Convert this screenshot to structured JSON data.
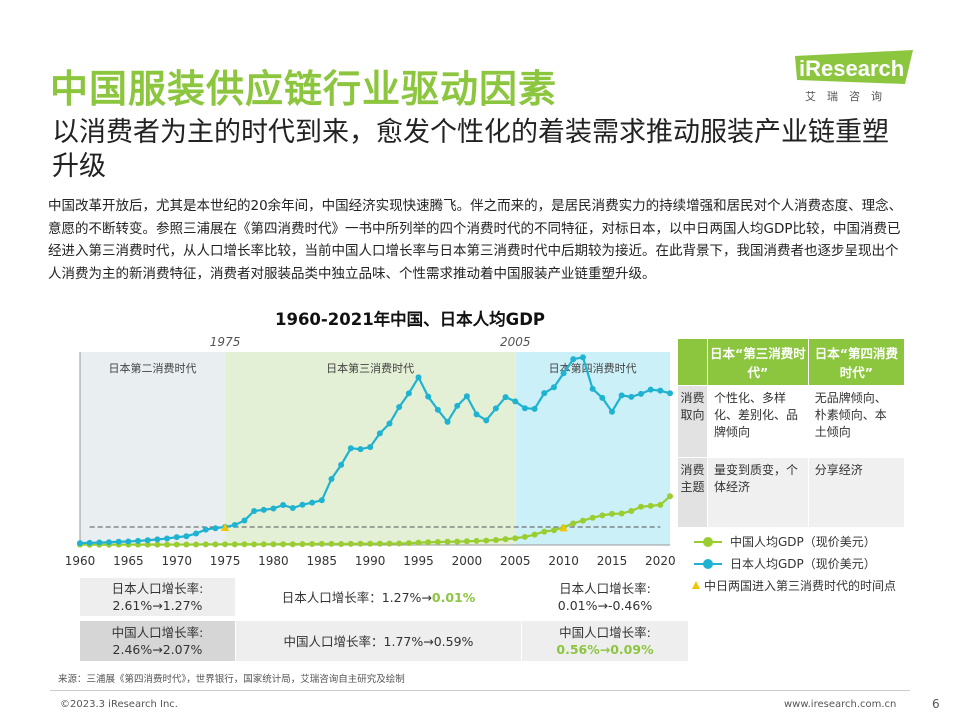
{
  "header": {
    "title": "中国服装供应链行业驱动因素",
    "subtitle": "以消费者为主的时代到来，愈发个性化的着装需求推动服装产业链重塑升级"
  },
  "logo": {
    "text": "iResearch",
    "sub": "艾瑞咨询"
  },
  "body": {
    "paragraph": "中国改革开放后，尤其是本世纪的20余年间，中国经济实现快速腾飞。伴之而来的，是居民消费实力的持续增强和居民对个人消费态度、理念、意愿的不断转变。参照三浦展在《第四消费时代》一书中所列举的四个消费时代的不同特征，对标日本，以中日两国人均GDP比较，中国消费已经进入第三消费时代，从人口增长率比较，当前中国人口增长率与日本第三消费时代中后期较为接近。在此背景下，我国消费者也逐步呈现出个人消费为主的新消费特征，消费者对服装品类中独立品味、个性需求推动着中国服装产业链重塑升级。"
  },
  "colors": {
    "brand_green": "#8cc63f",
    "japan_line": "#1fb3d1",
    "china_line": "#9acd32",
    "marker": "#f2c500"
  },
  "chart_data": {
    "type": "line",
    "title": "1960-2021年中国、日本人均GDP",
    "x": [
      1960,
      1961,
      1962,
      1963,
      1964,
      1965,
      1966,
      1967,
      1968,
      1969,
      1970,
      1971,
      1972,
      1973,
      1974,
      1975,
      1976,
      1977,
      1978,
      1979,
      1980,
      1981,
      1982,
      1983,
      1984,
      1985,
      1986,
      1987,
      1988,
      1989,
      1990,
      1991,
      1992,
      1993,
      1994,
      1995,
      1996,
      1997,
      1998,
      1999,
      2000,
      2001,
      2002,
      2003,
      2004,
      2005,
      2006,
      2007,
      2008,
      2009,
      2010,
      2011,
      2012,
      2013,
      2014,
      2015,
      2016,
      2017,
      2018,
      2019,
      2020,
      2021
    ],
    "series": [
      {
        "name": "日本人均GDP（现价美元）",
        "values": [
          479,
          563,
          633,
          718,
          836,
          919,
          1058,
          1228,
          1451,
          1669,
          2037,
          2272,
          2967,
          3997,
          4353,
          4659,
          5197,
          6335,
          8821,
          9105,
          9465,
          10361,
          9578,
          10425,
          10984,
          11585,
          17112,
          20745,
          25052,
          24823,
          25371,
          28925,
          31465,
          35766,
          39269,
          43440,
          38437,
          35022,
          31903,
          36027,
          38532,
          33846,
          32289,
          35387,
          38300,
          37219,
          35434,
          35275,
          39339,
          40855,
          44508,
          48168,
          48603,
          40454,
          38109,
          34524,
          38761,
          38387,
          39159,
          40247,
          39986,
          39313
        ]
      },
      {
        "name": "中国人均GDP（现价美元）",
        "values": [
          90,
          76,
          70,
          74,
          85,
          98,
          104,
          97,
          91,
          100,
          113,
          119,
          132,
          157,
          160,
          178,
          165,
          185,
          156,
          184,
          195,
          197,
          203,
          225,
          250,
          294,
          281,
          252,
          284,
          311,
          318,
          334,
          367,
          377,
          474,
          610,
          709,
          782,
          829,
          873,
          959,
          1053,
          1149,
          1289,
          1509,
          1753,
          2099,
          2694,
          3468,
          3832,
          4550,
          5618,
          6317,
          7051,
          7679,
          8067,
          8148,
          8817,
          9905,
          10144,
          10409,
          12618
        ]
      }
    ],
    "xticks": [
      1960,
      1965,
      1970,
      1975,
      1980,
      1985,
      1990,
      1995,
      2000,
      2005,
      2010,
      2015,
      2020
    ],
    "ylim": [
      0,
      50000
    ],
    "eras": [
      {
        "label": "日本第二消费时代",
        "start": 1960,
        "end": 1975
      },
      {
        "label": "日本第三消费时代",
        "start": 1975,
        "end": 2005
      },
      {
        "label": "日本第四消费时代",
        "start": 2005,
        "end": 2021
      }
    ],
    "era_markers": [
      "1975",
      "2005"
    ],
    "marker_points": [
      {
        "year": 1975,
        "value": 4659
      },
      {
        "year": 2010,
        "value": 4550
      }
    ],
    "marker_legend": "中日两国进入第三消费时代的时间点"
  },
  "era_table": {
    "headers": [
      "日本“第三消费时代”",
      "日本“第四消费时代”"
    ],
    "rows": [
      {
        "label": "消费取向",
        "third": "个性化、多样化、差别化、品牌倾向",
        "fourth": "无品牌倾向、朴素倾向、本土倾向"
      },
      {
        "label": "消费主题",
        "third": "量变到质变，个体经济",
        "fourth": "分享经济"
      }
    ]
  },
  "population": {
    "japan_row": {
      "era2": "日本人口增长率:\n2.61%→1.27%",
      "era3_prefix": "日本人口增长率：1.27%→",
      "era3_highlight": "0.01%",
      "era4": "日本人口增长率:\n0.01%→-0.46%"
    },
    "china_row": {
      "era2": "中国人口增长率:\n2.46%→2.07%",
      "era3": "中国人口增长率：1.77%→0.59%",
      "era4_label": "中国人口增长率:",
      "era4_highlight": "0.56%→0.09%"
    }
  },
  "footer": {
    "source": "来源：三浦展《第四消费时代》，世界银行，国家统计局，艾瑞咨询自主研究及绘制",
    "copyright": "©2023.3 iResearch Inc.",
    "website": "www.iresearch.com.cn",
    "page": "6"
  }
}
